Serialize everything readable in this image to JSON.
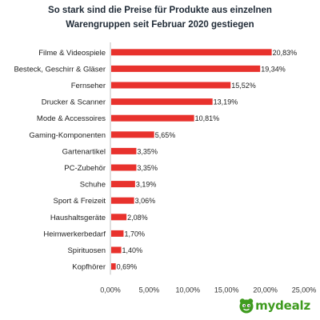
{
  "title_lines": [
    "So stark sind die Preise für Produkte aus einzelnen",
    "Warengruppen seit Februar 2020 gestiegen"
  ],
  "logo_text": "mydealz",
  "colors": {
    "bar": "#e8322d",
    "axis": "#bfbfbf",
    "brand": "#3f9b1f"
  },
  "chart_data": {
    "type": "bar",
    "orientation": "horizontal",
    "title": "So stark sind die Preise für Produkte aus einzelnen Warengruppen seit Februar 2020 gestiegen",
    "categories": [
      "Filme & Videospiele",
      "Besteck, Geschirr & Gläser",
      "Fernseher",
      "Drucker & Scanner",
      "Mode & Accessoires",
      "Gaming-Komponenten",
      "Gartenartikel",
      "PC-Zubehör",
      "Schuhe",
      "Sport & Freizeit",
      "Haushaltsgeräte",
      "Heimwerkerbedarf",
      "Spirituosen",
      "Kopfhörer"
    ],
    "values": [
      20.83,
      19.34,
      15.52,
      13.19,
      10.81,
      5.65,
      3.35,
      3.35,
      3.19,
      3.06,
      2.08,
      1.7,
      1.4,
      0.69
    ],
    "value_labels": [
      "20,83%",
      "19,34%",
      "15,52%",
      "13,19%",
      "10,81%",
      "5,65%",
      "3,35%",
      "3,35%",
      "3,19%",
      "3,06%",
      "2,08%",
      "1,70%",
      "1,40%",
      "0,69%"
    ],
    "xlim": [
      0,
      25
    ],
    "x_ticks": [
      0,
      5,
      10,
      15,
      20,
      25
    ],
    "x_tick_labels": [
      "0,00%",
      "5,00%",
      "10,00%",
      "15,00%",
      "20,00%",
      "25,00%"
    ],
    "xlabel": "",
    "ylabel": "",
    "grid": false,
    "legend": "none"
  }
}
